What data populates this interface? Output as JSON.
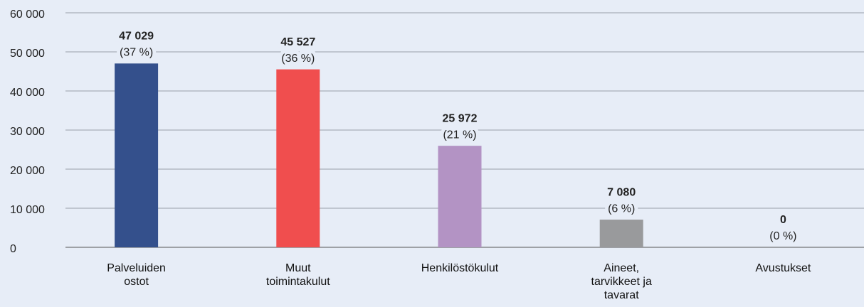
{
  "chart_data": {
    "type": "bar",
    "categories": [
      "Palveluiden ostot",
      "Muut toimintakulut",
      "Henkilöstökulut",
      "Aineet, tarvikkeet ja tavarat",
      "Avustukset"
    ],
    "values": [
      47029,
      45527,
      25972,
      7080,
      0
    ],
    "value_labels": [
      "47 029",
      "45 527",
      "25 972",
      "7 080",
      "0"
    ],
    "share_labels": [
      "(37 %)",
      "(36 %)",
      "(21 %)",
      "(6 %)",
      "(0 %)"
    ],
    "colors": [
      "#34508c",
      "#f04e4e",
      "#b393c4",
      "#999a9c",
      "#999a9c"
    ],
    "ylim": [
      0,
      60000
    ],
    "yticks": [
      0,
      {
        "value": 10000,
        "label": "10 000"
      },
      {
        "value": 20000,
        "label": "20 000"
      },
      {
        "value": 30000,
        "label": "30 000"
      },
      {
        "value": 40000,
        "label": "40 000"
      },
      {
        "value": 50000,
        "label": "50 000"
      },
      {
        "value": 60000,
        "label": "60 000"
      }
    ],
    "grid": true
  }
}
